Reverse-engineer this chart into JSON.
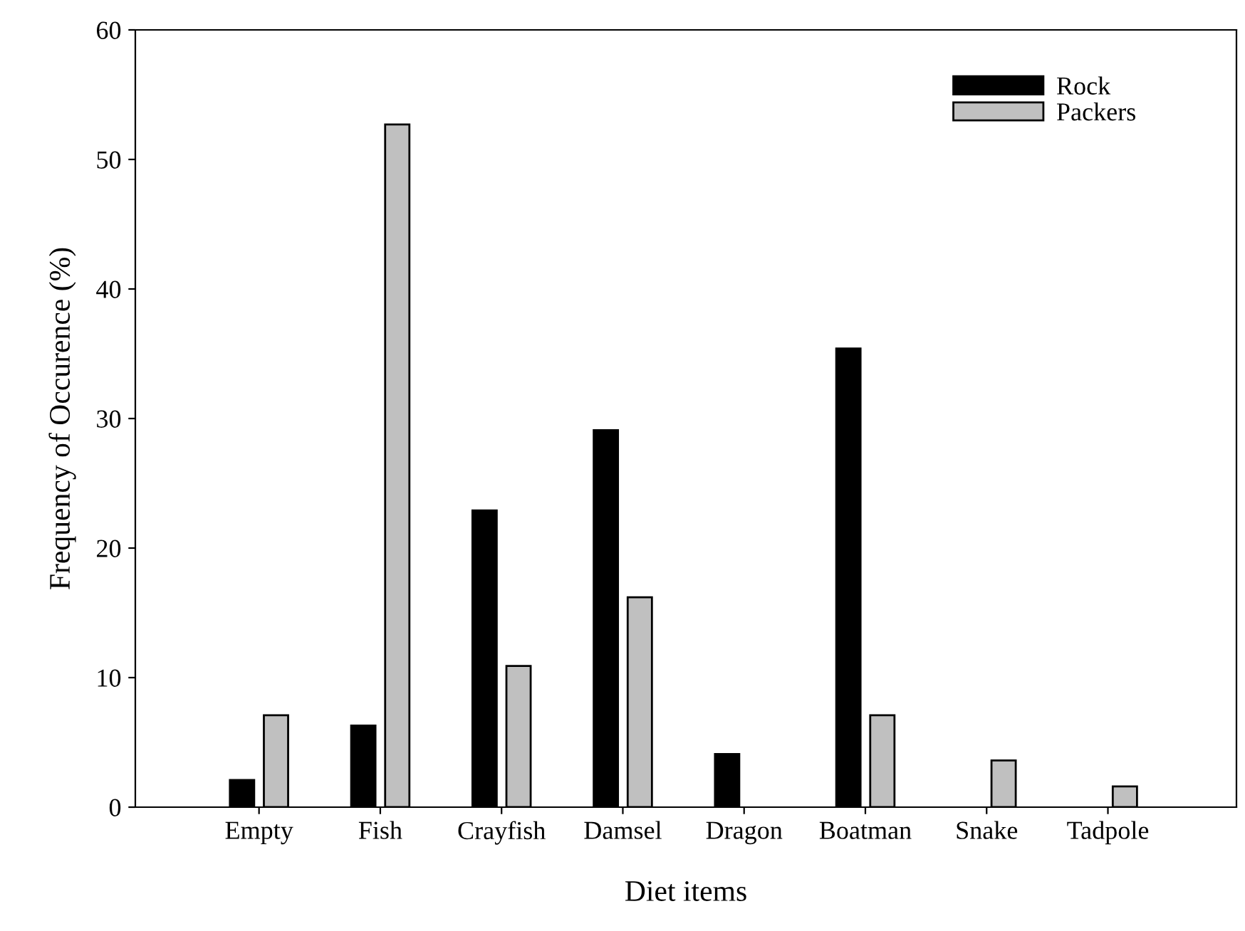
{
  "chart_data": {
    "type": "bar",
    "xlabel": "Diet items",
    "ylabel": "Frequency of Occurence (%)",
    "categories": [
      "Empty",
      "Fish",
      "Crayfish",
      "Damsel",
      "Dragon",
      "Boatman",
      "Snake",
      "Tadpole"
    ],
    "series": [
      {
        "name": "Rock",
        "color": "#000000",
        "values": [
          2.1,
          6.3,
          22.9,
          29.1,
          4.1,
          35.4,
          null,
          null
        ]
      },
      {
        "name": "Packers",
        "color": "#c0c0c0",
        "values": [
          7.1,
          52.7,
          10.9,
          16.2,
          null,
          7.1,
          3.6,
          1.6
        ]
      }
    ],
    "ylim": [
      0,
      60
    ],
    "yticks": [
      0,
      10,
      20,
      30,
      40,
      50,
      60
    ],
    "grid": false,
    "legend": "top right"
  }
}
